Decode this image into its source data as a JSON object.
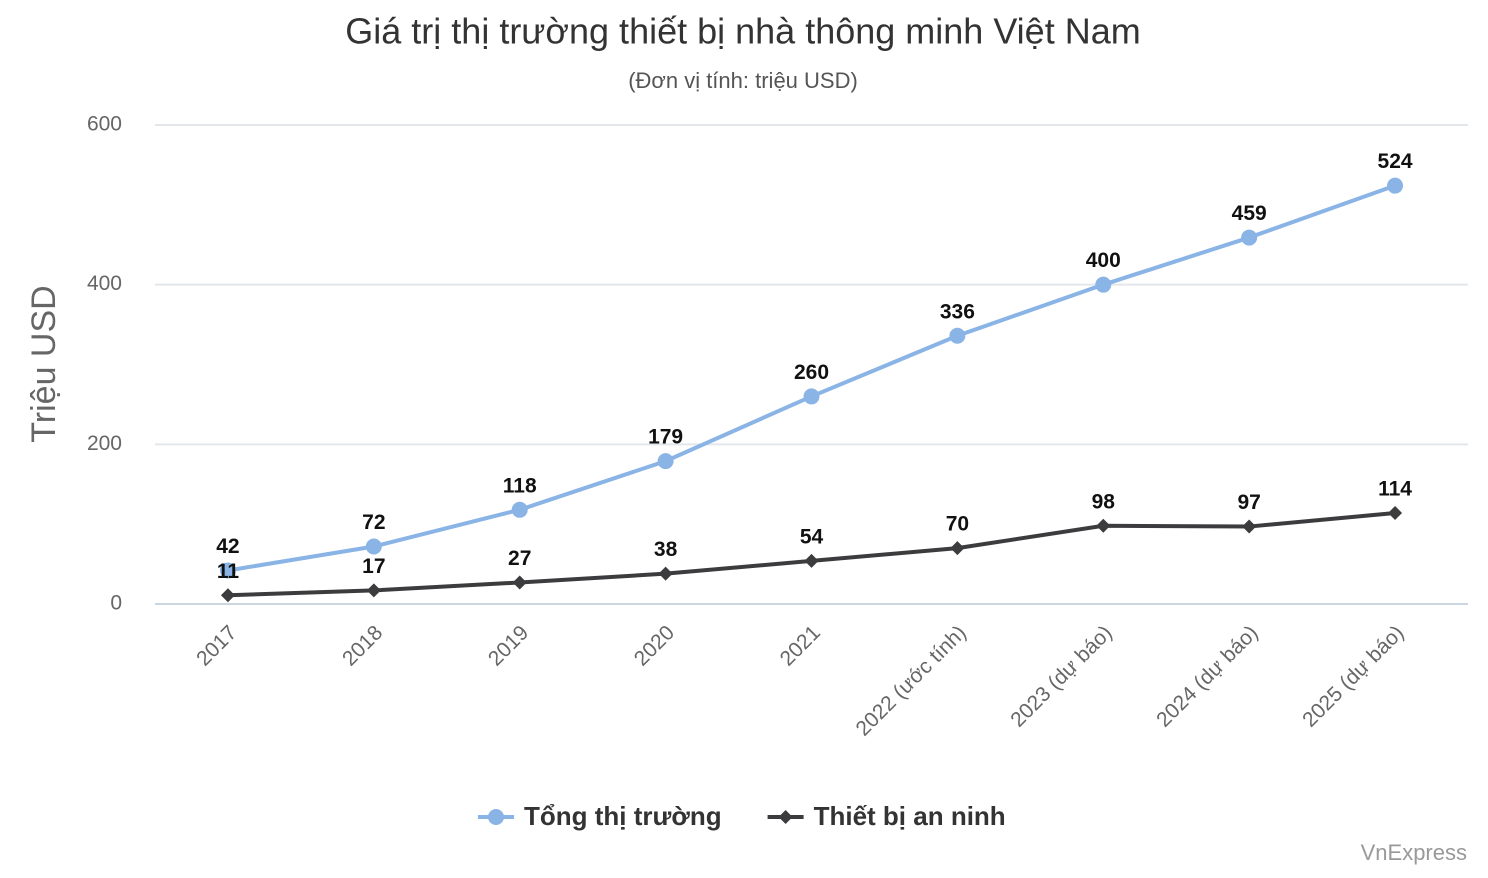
{
  "chart_data": {
    "type": "line",
    "title": "Giá trị thị trường thiết bị nhà thông minh Việt Nam",
    "subtitle": "(Đơn vị tính: triệu USD)",
    "y_label": "Triệu USD",
    "source": "VnExpress",
    "categories": [
      "2017",
      "2018",
      "2019",
      "2020",
      "2021",
      "2022 (ước tính)",
      "2023 (dự báo)",
      "2024 (dự báo)",
      "2025 (dự báo)"
    ],
    "series": [
      {
        "name": "Tổng thị trường",
        "color": "#8ab4e6",
        "marker": "circle",
        "values": [
          42,
          72,
          118,
          179,
          260,
          336,
          400,
          459,
          524
        ]
      },
      {
        "name": "Thiết bị an ninh",
        "color": "#3c3c3e",
        "marker": "diamond",
        "values": [
          11,
          17,
          27,
          38,
          54,
          70,
          98,
          97,
          114
        ]
      }
    ],
    "ylim": [
      0,
      600
    ],
    "yticks": [
      0,
      200,
      400,
      600
    ],
    "grid": true
  }
}
